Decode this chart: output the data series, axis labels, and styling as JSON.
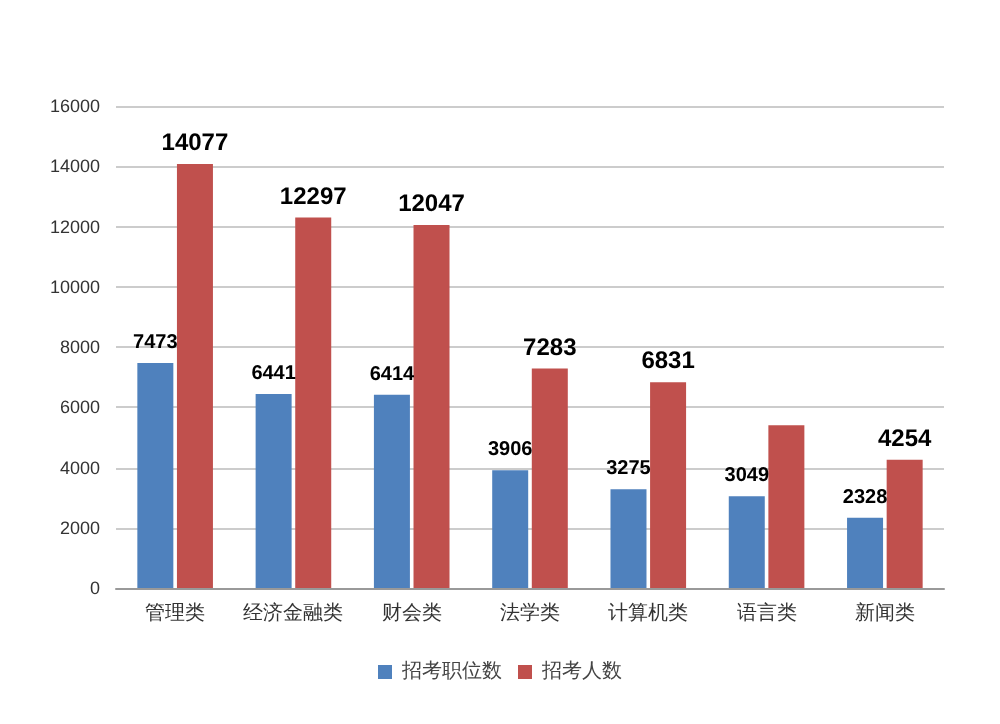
{
  "chart_data": {
    "type": "bar",
    "categories": [
      "管理类",
      "经济金融类",
      "财会类",
      "法学类",
      "计算机类",
      "语言类",
      "新闻类"
    ],
    "series": [
      {
        "name": "招考职位数",
        "color": "#4f81bd",
        "values": [
          7473,
          6441,
          6414,
          3906,
          3275,
          3049,
          2328
        ],
        "value_labels": [
          "7473",
          "6441",
          "6414",
          "3906",
          "3275",
          "3049",
          "2328"
        ]
      },
      {
        "name": "招考人数",
        "color": "#c0504d",
        "values": [
          14077,
          12297,
          12047,
          7283,
          6831,
          5400,
          4254
        ],
        "value_labels": [
          "14077",
          "12297",
          "12047",
          "7283",
          "6831",
          null,
          "4254"
        ]
      }
    ],
    "ylim": [
      0,
      16000
    ],
    "yticks": [
      0,
      2000,
      4000,
      6000,
      8000,
      10000,
      12000,
      14000,
      16000
    ],
    "grid": "y",
    "legend": "bottom"
  }
}
